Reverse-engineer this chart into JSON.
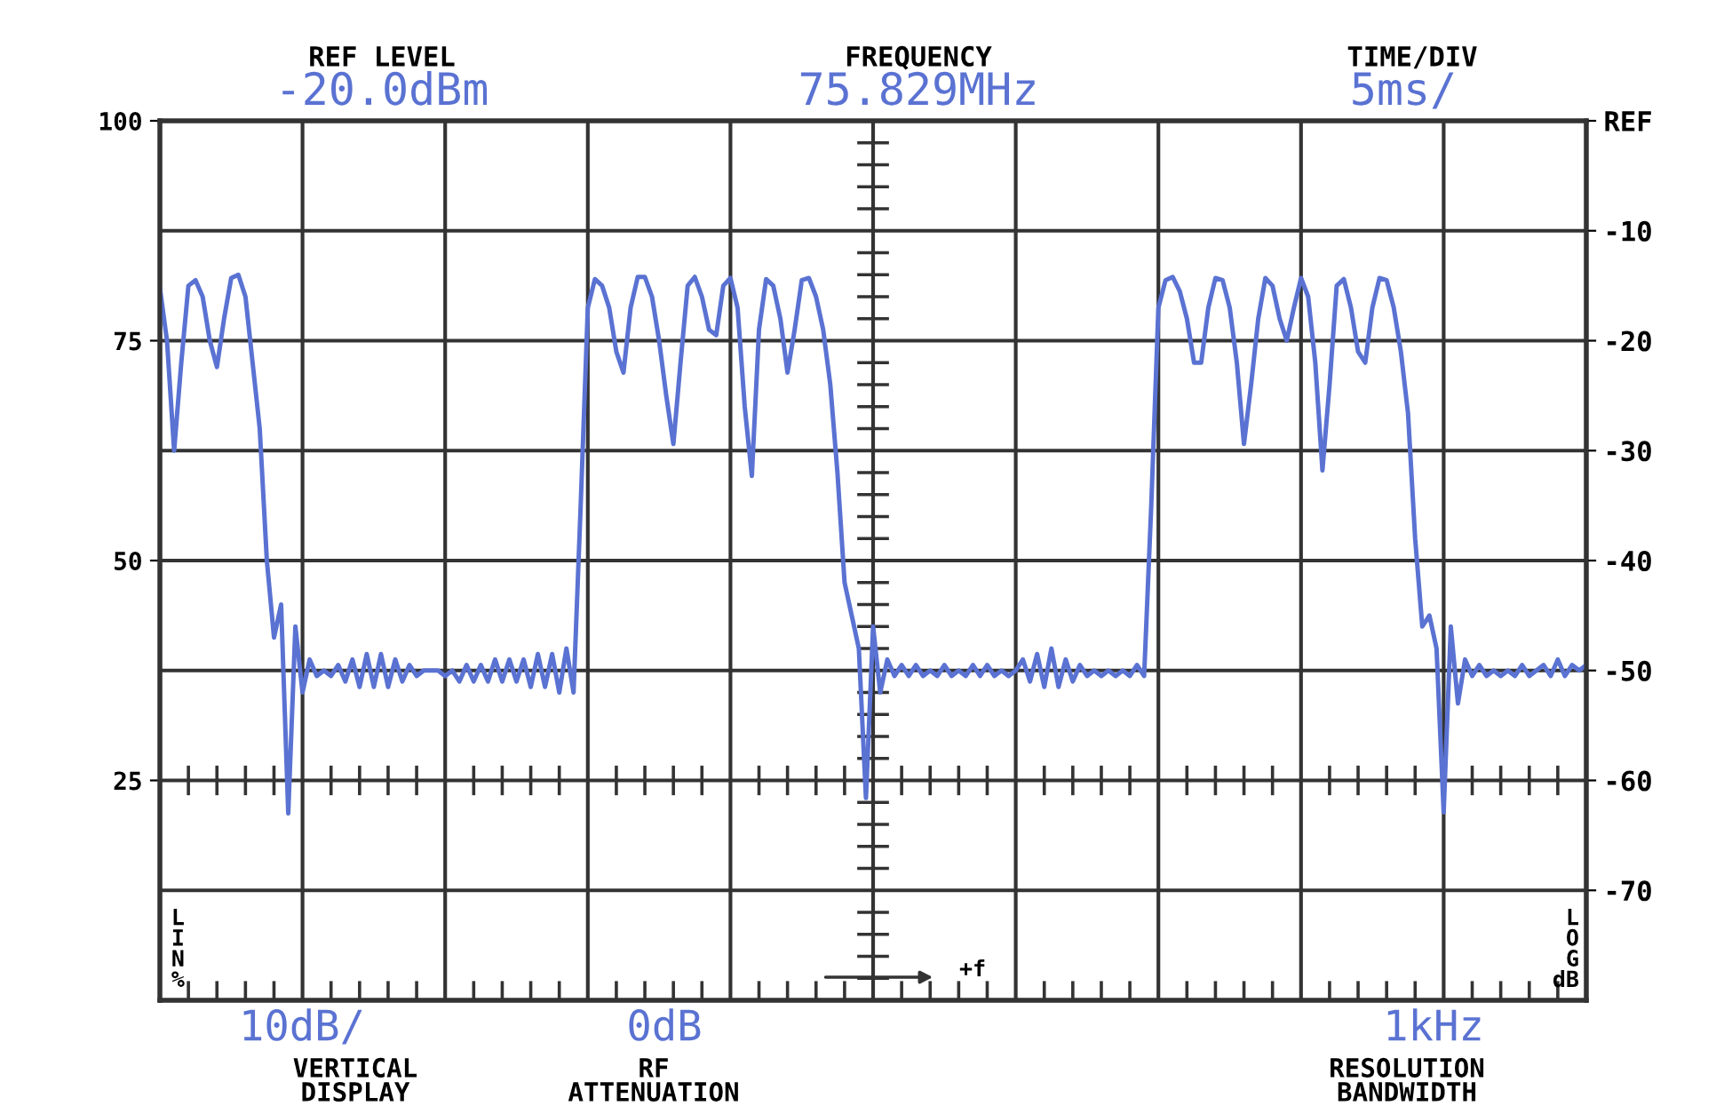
{
  "chart_data": {
    "type": "line",
    "annotations": [
      "REF LEVEL",
      "-20.0dBm",
      "FREQUENCY",
      "75.829MHz",
      "TIME/DIV",
      "5ms/",
      "10dB/",
      "VERTICAL DISPLAY",
      "0dB",
      "RF ATTENUATION",
      "1kHz",
      "RESOLUTION BANDWIDTH",
      "+f"
    ],
    "ylabel": "LIN%",
    "y2label": "LOG dB",
    "ylim": [
      0,
      100
    ],
    "yticks": [
      100,
      75,
      50,
      25
    ],
    "y2lim": [
      -80,
      0
    ],
    "y2ticks": [
      {
        "value": 0,
        "label": "REF"
      },
      -10,
      -20,
      -30,
      -40,
      -50,
      -60,
      -70
    ],
    "grid": true,
    "marker": "none",
    "line_style": "solid",
    "legend": false,
    "categories": [
      null,
      null,
      null,
      null,
      null,
      null,
      null,
      null,
      null,
      null,
      null,
      null,
      null,
      null,
      null,
      null,
      null,
      null,
      null,
      null,
      null,
      null,
      null,
      null,
      null,
      null,
      null,
      null,
      null,
      null,
      null,
      null,
      null,
      null,
      null,
      null,
      null,
      null,
      null,
      null,
      null,
      null,
      null,
      null,
      null,
      null,
      null,
      null,
      null,
      null,
      null,
      null,
      null,
      null,
      null,
      null,
      null,
      null,
      null,
      null,
      null,
      null,
      null,
      null,
      null,
      null,
      null,
      null,
      null,
      null,
      null,
      null,
      null,
      null,
      null,
      null,
      null,
      null,
      null,
      null,
      null,
      null,
      null,
      null,
      null,
      null,
      null,
      null,
      null,
      null,
      null,
      null,
      null,
      null,
      null,
      null,
      null,
      null,
      null,
      null,
      null,
      null,
      null,
      null,
      null,
      null,
      null,
      null,
      null,
      null,
      null,
      null,
      null,
      null,
      null,
      null,
      null,
      null,
      null,
      null,
      null,
      null,
      null,
      null,
      null,
      null,
      null,
      null,
      null,
      null,
      null,
      null,
      null,
      null,
      null,
      null,
      null,
      null,
      null,
      null,
      null,
      null,
      null,
      null,
      null,
      null,
      null,
      null,
      null,
      null,
      null,
      null,
      null,
      null,
      null,
      null,
      null,
      null,
      null,
      null,
      null,
      null,
      null,
      null,
      null,
      null,
      null,
      null,
      null,
      null,
      null,
      null,
      null,
      null,
      null,
      null,
      null,
      null,
      null,
      null,
      null,
      null,
      null,
      null,
      null,
      null,
      null,
      null,
      null,
      null,
      null,
      null,
      null,
      null,
      null,
      null,
      null,
      null,
      null,
      null,
      null
    ],
    "series": [
      {
        "color": "#5a72d2",
        "axis": "y2",
        "values": [
          -15.2,
          -20,
          -30,
          -22,
          -15,
          -14.5,
          -16,
          -20,
          -22.4,
          -18,
          -14.3,
          -14,
          -16,
          -22,
          -28,
          -40,
          -47,
          -44,
          -63,
          -46,
          -52,
          -49,
          -50.5,
          -50,
          -50.5,
          -49.5,
          -51,
          -49,
          -51.5,
          -48.5,
          -51.5,
          -48.5,
          -51.5,
          -49,
          -51,
          -49.5,
          -50.5,
          -50,
          -50,
          -50,
          -50.5,
          -50,
          -51,
          -49.5,
          -51,
          -49.5,
          -51,
          -49,
          -51,
          -49,
          -51,
          -49,
          -51.5,
          -48.5,
          -51.5,
          -48.5,
          -52,
          -48,
          -52,
          -35,
          -17,
          -14.4,
          -15,
          -17,
          -21,
          -22.9,
          -17,
          -14.2,
          -14.2,
          -16,
          -20,
          -25,
          -29.4,
          -22,
          -15,
          -14.2,
          -16,
          -19,
          -19.5,
          -15,
          -14.3,
          -17,
          -26,
          -32.3,
          -19,
          -14.4,
          -15,
          -18,
          -22.9,
          -19,
          -14.5,
          -14.3,
          -16,
          -19,
          -24,
          -32,
          -42,
          -45,
          -48,
          -61.6,
          -46,
          -52,
          -49,
          -50.5,
          -49.5,
          -50.5,
          -49.5,
          -50.5,
          -50,
          -50.5,
          -49.5,
          -50.5,
          -50,
          -50.5,
          -49.5,
          -50.5,
          -49.5,
          -50.5,
          -50,
          -50.5,
          -50,
          -49,
          -51,
          -48.5,
          -51.5,
          -48,
          -51.5,
          -49,
          -51,
          -49.5,
          -50.5,
          -50,
          -50.5,
          -50,
          -50.5,
          -50,
          -50.5,
          -49.5,
          -50.5,
          -35,
          -17,
          -14.5,
          -14.2,
          -15.5,
          -18,
          -22,
          -22,
          -17,
          -14.3,
          -14.5,
          -17,
          -22,
          -29.4,
          -24,
          -18,
          -14.3,
          -15,
          -18,
          -20,
          -17,
          -14.3,
          -16,
          -22,
          -31.8,
          -24,
          -15,
          -14.4,
          -17,
          -21,
          -22,
          -17,
          -14.3,
          -14.5,
          -17,
          -21,
          -26.6,
          -38,
          -46,
          -45,
          -48,
          -62.9,
          -46,
          -53,
          -49,
          -50.5,
          -49.5,
          -50.5,
          -50,
          -50.5,
          -50,
          -50.5,
          -49.5,
          -50.5,
          -50,
          -49.5,
          -50.5,
          -49,
          -50.5,
          -49.5,
          -50,
          -49.5
        ]
      }
    ]
  }
}
